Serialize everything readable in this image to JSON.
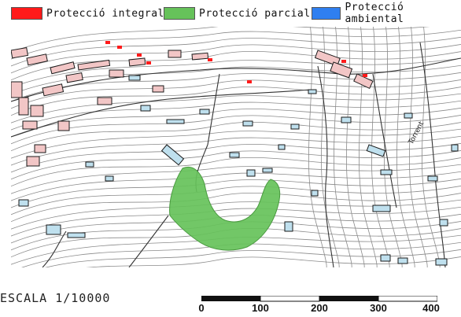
{
  "legend": {
    "items": [
      {
        "label": "Protecció integral",
        "color": "#ff1a1a"
      },
      {
        "label": "Protecció parcial",
        "color": "#66c25a"
      },
      {
        "label": "Protecció ambiental",
        "color": "#2f7ff0"
      }
    ]
  },
  "map": {
    "street_label": "Torrent",
    "colors": {
      "contour": "#8a8a8a",
      "building_pink": "#f2c6c6",
      "building_blue": "#bfe0ee",
      "outline": "#1a1a1a",
      "green_zone": "#66c25a"
    }
  },
  "scale": {
    "text": "ESCALA    1/10000",
    "ticks": [
      "0",
      "100",
      "200",
      "300",
      "400"
    ]
  }
}
